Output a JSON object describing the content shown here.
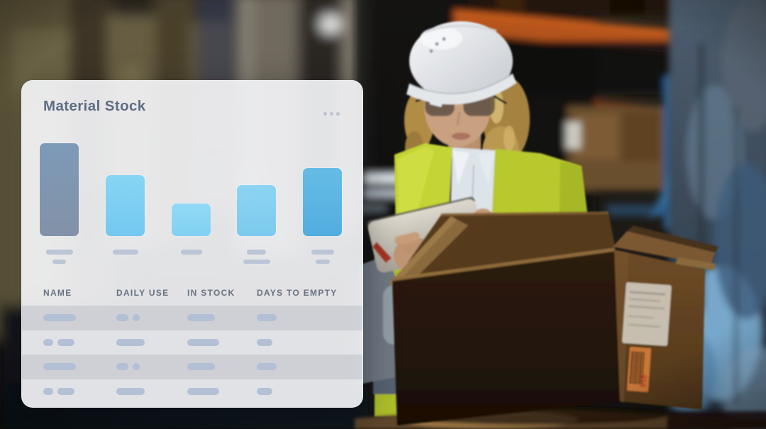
{
  "card": {
    "title": "Material Stock",
    "menu_icon": "ellipsis-icon",
    "bar_label_skeletons": [
      [
        38,
        19
      ],
      [
        36
      ],
      [
        30
      ],
      [
        27,
        38
      ],
      [
        32,
        20
      ]
    ],
    "table": {
      "headers": [
        "NAME",
        "DAILY USE",
        "IN STOCK",
        "DAYS TO EMPTY"
      ],
      "rows": [
        {
          "shaded": true,
          "cells": [
            [
              46
            ],
            [
              17,
              10
            ],
            [
              39
            ],
            [
              28
            ]
          ]
        },
        {
          "shaded": false,
          "cells": [
            [
              14,
              24
            ],
            [
              40
            ],
            [
              45
            ],
            [
              22
            ]
          ]
        },
        {
          "shaded": true,
          "cells": [
            [
              46
            ],
            [
              17,
              10
            ],
            [
              39
            ],
            [
              28
            ]
          ]
        },
        {
          "shaded": false,
          "cells": [
            [
              14,
              24
            ],
            [
              40
            ],
            [
              45
            ],
            [
              22
            ]
          ]
        }
      ]
    }
  },
  "chart_data": {
    "type": "bar",
    "title": "Material Stock",
    "categories": [
      "",
      "",
      "",
      "",
      ""
    ],
    "category_labels": "skeleton-placeholders",
    "values_percent_of_max": [
      100,
      66,
      35,
      55,
      73
    ],
    "bar_pixel_heights": [
      131,
      86,
      46,
      72,
      95
    ],
    "bar_colors": [
      [
        "#7d9ab8",
        "#8292a7"
      ],
      [
        "#87d5f5",
        "#74c8ef"
      ],
      [
        "#92daf7",
        "#81d0f2"
      ],
      [
        "#8dd4f3",
        "#7ccaee"
      ],
      [
        "#65bce5",
        "#52ade0"
      ]
    ],
    "xlabel": "",
    "ylabel": "",
    "grid": false,
    "legend": "none",
    "axis_tick_labels_visible": false
  },
  "photo": {
    "box_sticker_text": "918"
  },
  "colors": {
    "card_bg": "rgba(243,244,247,0.92)",
    "title_text": "#5e6d83",
    "header_text": "#68727f",
    "skeleton_pill": "#b1bed4",
    "row_shade": "rgba(158,163,177,0.28)",
    "vest_yellow": "#bfd032",
    "beam_orange": "#b4521e",
    "hard_hat_white": "#e8eaee"
  }
}
